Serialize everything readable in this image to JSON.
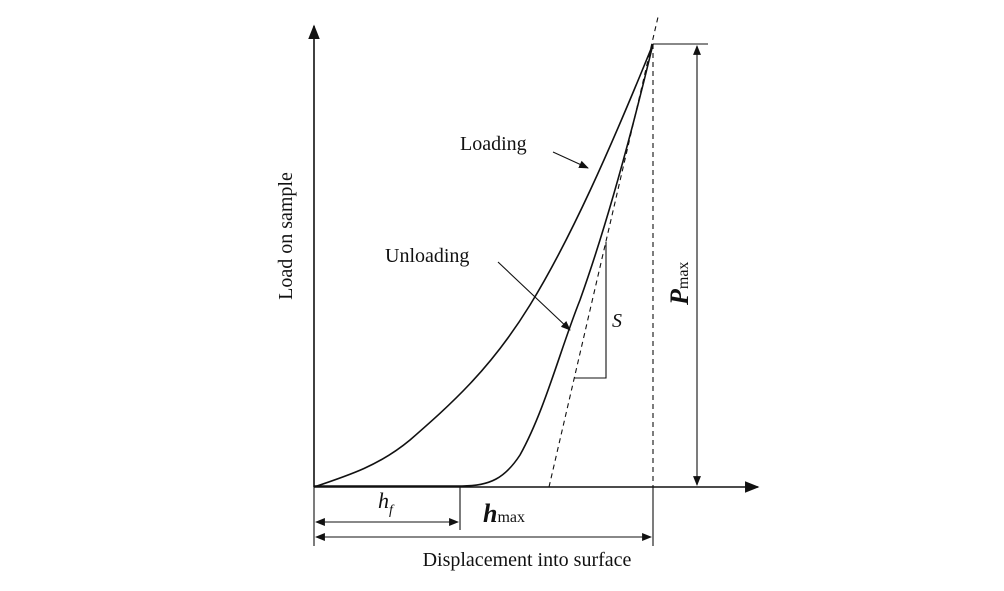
{
  "axes": {
    "y_label": "Load on sample",
    "x_label": "Displacement into surface"
  },
  "curves": {
    "loading": "Loading",
    "unloading": "Unloading"
  },
  "annotations": {
    "stiffness": "S",
    "p_max": {
      "symbol": "P",
      "subscript": "max"
    },
    "h_max": {
      "symbol": "h",
      "subscript": "max"
    },
    "h_f": {
      "symbol": "h",
      "subscript": "f"
    }
  }
}
